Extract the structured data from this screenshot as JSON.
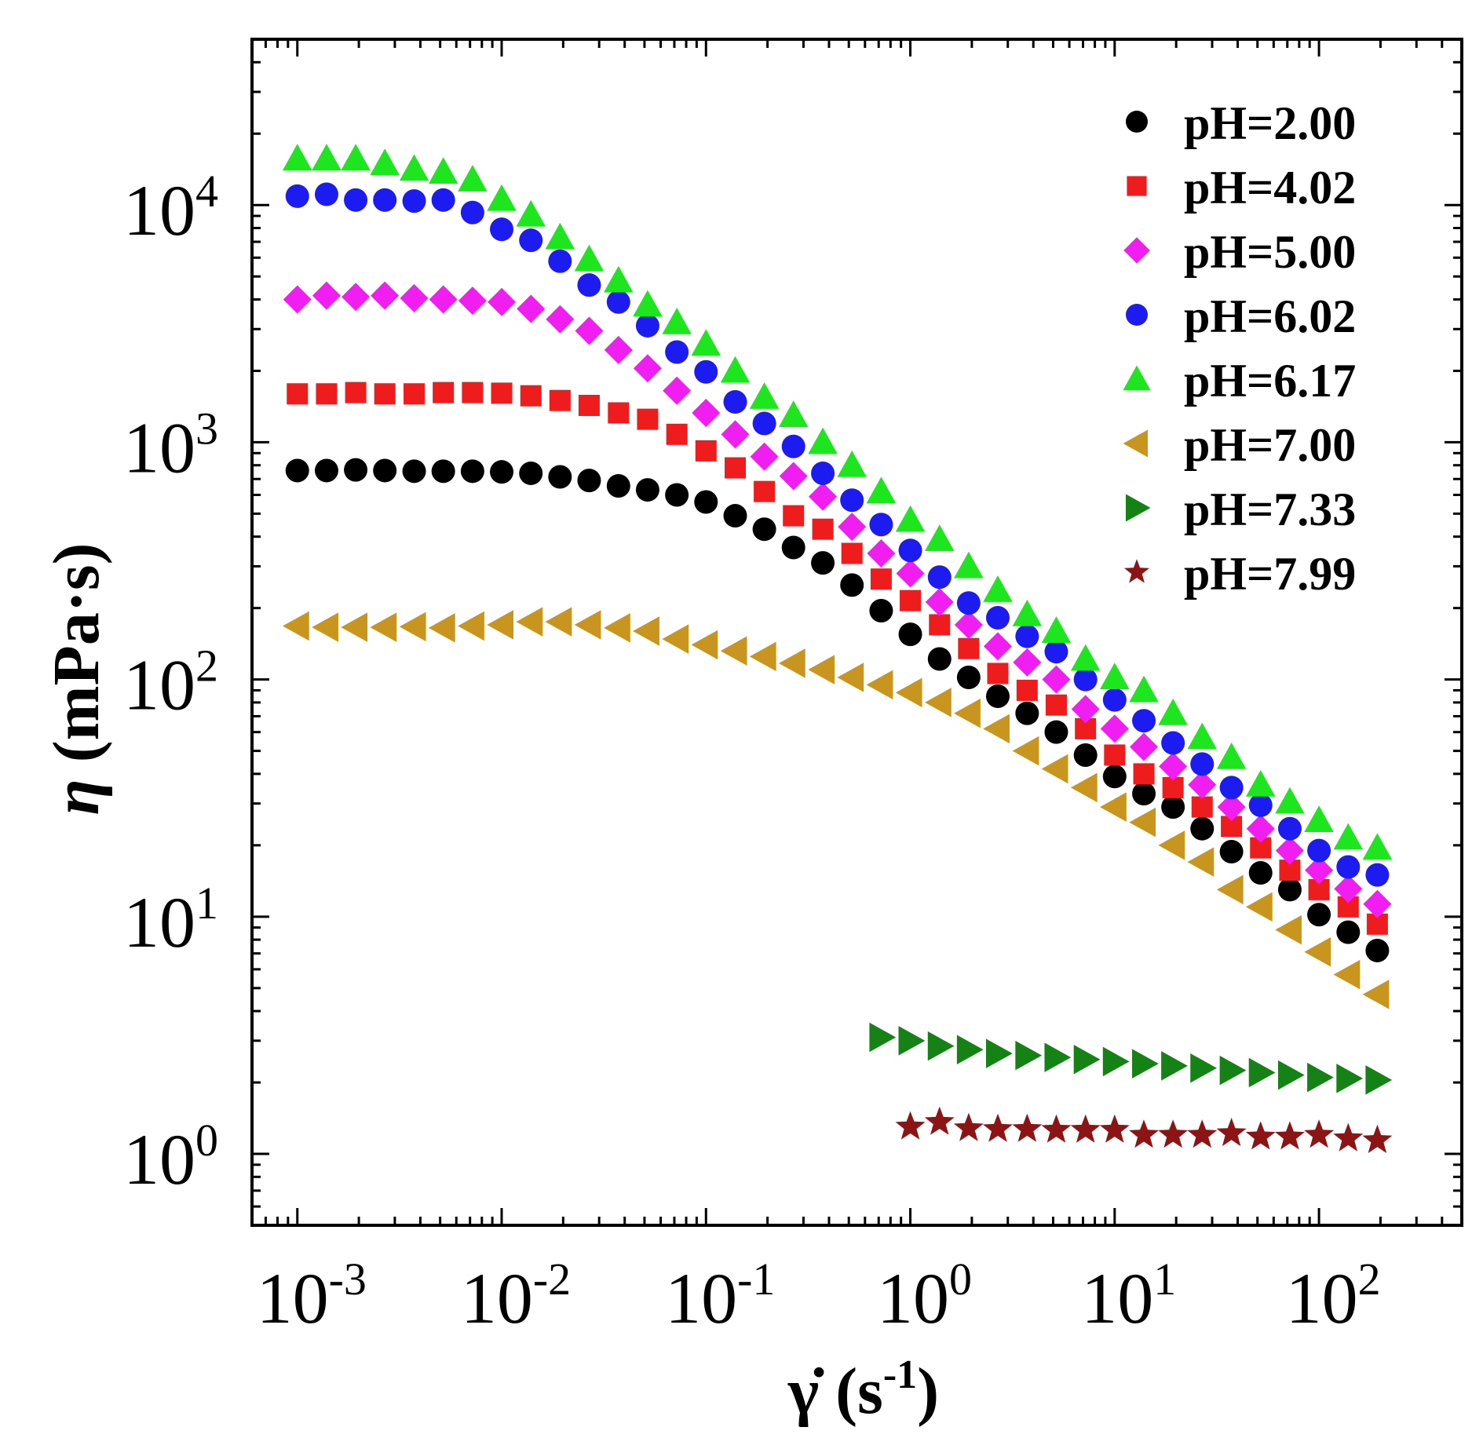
{
  "chart_data": {
    "type": "scatter",
    "x_scale": "log",
    "y_scale": "log",
    "xlim": [
      0.0006,
      500
    ],
    "ylim": [
      0.5,
      50000
    ],
    "xlabel": {
      "base": "γ̇ (s",
      "sup": "-1",
      "tail": ")"
    },
    "ylabel": {
      "sym": "η",
      "rest": " (mPa·s)"
    },
    "x_ticks": [
      {
        "value": 0.001,
        "base": "10",
        "exp": "-3"
      },
      {
        "value": 0.01,
        "base": "10",
        "exp": "-2"
      },
      {
        "value": 0.1,
        "base": "10",
        "exp": "-1"
      },
      {
        "value": 1,
        "base": "10",
        "exp": "0"
      },
      {
        "value": 10,
        "base": "10",
        "exp": "1"
      },
      {
        "value": 100,
        "base": "10",
        "exp": "2"
      }
    ],
    "y_ticks": [
      {
        "value": 1,
        "base": "10",
        "exp": "0"
      },
      {
        "value": 10,
        "base": "10",
        "exp": "1"
      },
      {
        "value": 100,
        "base": "10",
        "exp": "2"
      },
      {
        "value": 1000,
        "base": "10",
        "exp": "3"
      },
      {
        "value": 10000,
        "base": "10",
        "exp": "4"
      }
    ],
    "legend_position": "top-right",
    "grid": false,
    "series": [
      {
        "name": "pH=2.00",
        "marker": "circle",
        "color": "#000000",
        "x": [
          0.001,
          0.00139,
          0.00193,
          0.00268,
          0.00373,
          0.00518,
          0.0072,
          0.01,
          0.0139,
          0.0193,
          0.0268,
          0.0373,
          0.0518,
          0.072,
          0.1,
          0.139,
          0.193,
          0.268,
          0.373,
          0.518,
          0.72,
          1,
          1.39,
          1.93,
          2.68,
          3.73,
          5.18,
          7.2,
          10,
          13.9,
          19.3,
          26.8,
          37.3,
          51.8,
          72,
          100,
          139,
          193
        ],
        "y": [
          760,
          760,
          765,
          760,
          755,
          755,
          755,
          750,
          740,
          715,
          690,
          655,
          630,
          600,
          560,
          490,
          430,
          360,
          310,
          250,
          195,
          155,
          122,
          102,
          85,
          72,
          60,
          48,
          39,
          33,
          29,
          23.5,
          18.8,
          15.3,
          13,
          10.2,
          8.6,
          7.2
        ]
      },
      {
        "name": "pH=4.02",
        "marker": "square",
        "color": "#ee1c1c",
        "x": [
          0.001,
          0.00139,
          0.00193,
          0.00268,
          0.00373,
          0.00518,
          0.0072,
          0.01,
          0.0139,
          0.0193,
          0.0268,
          0.0373,
          0.0518,
          0.072,
          0.1,
          0.139,
          0.193,
          0.268,
          0.373,
          0.518,
          0.72,
          1,
          1.39,
          1.93,
          2.68,
          3.73,
          5.18,
          7.2,
          10,
          13.9,
          19.3,
          26.8,
          37.3,
          51.8,
          72,
          100,
          139,
          193
        ],
        "y": [
          1600,
          1600,
          1620,
          1600,
          1600,
          1620,
          1620,
          1610,
          1570,
          1500,
          1430,
          1330,
          1250,
          1080,
          920,
          780,
          620,
          490,
          430,
          340,
          265,
          215,
          170,
          135,
          106,
          90,
          78,
          62,
          48,
          40,
          35,
          29,
          24,
          19.5,
          15.7,
          13,
          11,
          9.3
        ]
      },
      {
        "name": "pH=5.00",
        "marker": "diamond",
        "color": "#f01ef0",
        "x": [
          0.001,
          0.00139,
          0.00193,
          0.00268,
          0.00373,
          0.00518,
          0.0072,
          0.01,
          0.0139,
          0.0193,
          0.0268,
          0.0373,
          0.0518,
          0.072,
          0.1,
          0.139,
          0.193,
          0.268,
          0.373,
          0.518,
          0.72,
          1,
          1.39,
          1.93,
          2.68,
          3.73,
          5.18,
          7.2,
          10,
          13.9,
          19.3,
          26.8,
          37.3,
          51.8,
          72,
          100,
          139,
          193
        ],
        "y": [
          4000,
          4150,
          4100,
          4150,
          4050,
          4000,
          3950,
          3900,
          3650,
          3300,
          2950,
          2450,
          2050,
          1650,
          1330,
          1080,
          870,
          720,
          590,
          440,
          340,
          280,
          212,
          170,
          138,
          118,
          100,
          75,
          62,
          52,
          43,
          36,
          29,
          23.5,
          19,
          15.7,
          13.1,
          11.3
        ]
      },
      {
        "name": "pH=6.02",
        "marker": "circle",
        "color": "#1c1cf0",
        "x": [
          0.001,
          0.00139,
          0.00193,
          0.00268,
          0.00373,
          0.00518,
          0.0072,
          0.01,
          0.0139,
          0.0193,
          0.0268,
          0.0373,
          0.0518,
          0.072,
          0.1,
          0.139,
          0.193,
          0.268,
          0.373,
          0.518,
          0.72,
          1,
          1.39,
          1.93,
          2.68,
          3.73,
          5.18,
          7.2,
          10,
          13.9,
          19.3,
          26.8,
          37.3,
          51.8,
          72,
          100,
          139,
          193
        ],
        "y": [
          10900,
          11100,
          10500,
          10500,
          10400,
          10500,
          9300,
          7900,
          7100,
          5800,
          4600,
          3900,
          3100,
          2400,
          1980,
          1480,
          1200,
          960,
          740,
          570,
          450,
          350,
          270,
          210,
          182,
          152,
          131,
          100,
          82,
          67,
          54,
          44,
          35,
          29.5,
          23.5,
          19,
          16.2,
          15
        ]
      },
      {
        "name": "pH=6.17",
        "marker": "triangle-up",
        "color": "#1ee61e",
        "x": [
          0.001,
          0.00139,
          0.00193,
          0.00268,
          0.00373,
          0.00518,
          0.0072,
          0.01,
          0.0139,
          0.0193,
          0.0268,
          0.0373,
          0.0518,
          0.072,
          0.1,
          0.139,
          0.193,
          0.268,
          0.373,
          0.518,
          0.72,
          1,
          1.39,
          1.93,
          2.68,
          3.73,
          5.18,
          7.2,
          10,
          13.9,
          19.3,
          26.8,
          37.3,
          51.8,
          72,
          100,
          139,
          193
        ],
        "y": [
          15700,
          15700,
          15700,
          15000,
          14200,
          13800,
          12800,
          10600,
          9100,
          7300,
          5900,
          4800,
          3800,
          3200,
          2600,
          2000,
          1550,
          1300,
          1000,
          800,
          620,
          470,
          390,
          300,
          238,
          188,
          160,
          122,
          102,
          90,
          72,
          57,
          47,
          36,
          30.5,
          25.5,
          21.5,
          19.5
        ]
      },
      {
        "name": "pH=7.00",
        "marker": "triangle-left",
        "color": "#c8961e",
        "x": [
          0.001,
          0.00139,
          0.00193,
          0.00268,
          0.00373,
          0.00518,
          0.0072,
          0.01,
          0.0139,
          0.0193,
          0.0268,
          0.0373,
          0.0518,
          0.072,
          0.1,
          0.139,
          0.193,
          0.268,
          0.373,
          0.518,
          0.72,
          1,
          1.39,
          1.93,
          2.68,
          3.73,
          5.18,
          7.2,
          10,
          13.9,
          19.3,
          26.8,
          37.3,
          51.8,
          72,
          100,
          139,
          193
        ],
        "y": [
          168,
          166,
          166,
          166,
          167,
          165,
          168,
          170,
          175,
          175,
          170,
          165,
          160,
          148,
          140,
          132,
          125,
          117,
          110,
          102,
          95,
          88,
          80,
          72,
          62,
          50,
          42,
          35,
          29,
          25,
          20,
          17,
          13,
          11,
          8.8,
          7.1,
          5.7,
          4.7
        ]
      },
      {
        "name": "pH=7.33",
        "marker": "triangle-right",
        "color": "#148214",
        "x": [
          0.72,
          1,
          1.39,
          1.93,
          2.68,
          3.73,
          5.18,
          7.2,
          10,
          13.9,
          19.3,
          26.8,
          37.3,
          51.8,
          72,
          100,
          139,
          193
        ],
        "y": [
          3.1,
          3.0,
          2.85,
          2.75,
          2.65,
          2.6,
          2.55,
          2.5,
          2.45,
          2.4,
          2.35,
          2.3,
          2.25,
          2.2,
          2.15,
          2.1,
          2.08,
          2.05
        ]
      },
      {
        "name": "pH=7.99",
        "marker": "star",
        "color": "#8c1414",
        "x": [
          1,
          1.39,
          1.93,
          2.68,
          3.73,
          5.18,
          7.2,
          10,
          13.9,
          19.3,
          26.8,
          37.3,
          51.8,
          72,
          100,
          139,
          193
        ],
        "y": [
          1.3,
          1.36,
          1.28,
          1.27,
          1.27,
          1.26,
          1.26,
          1.26,
          1.2,
          1.2,
          1.2,
          1.22,
          1.18,
          1.18,
          1.2,
          1.16,
          1.14
        ]
      }
    ]
  }
}
